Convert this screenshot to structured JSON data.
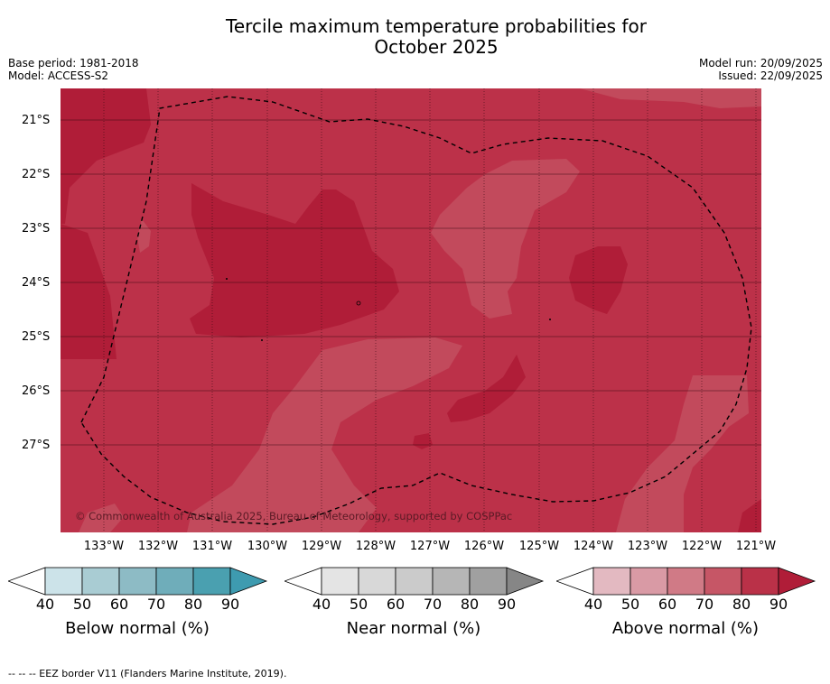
{
  "title_line1": "Tercile maximum temperature probabilities for",
  "title_line2": "October 2025",
  "meta_left": {
    "base_period": "Base period: 1981-2018",
    "model": "Model: ACCESS-S2"
  },
  "meta_right": {
    "model_run": "Model run: 20/09/2025",
    "issued": "Issued: 22/09/2025"
  },
  "copyright": "© Commonwealth of Australia 2025, Bureau of Meteorology, supported by COSPPac",
  "lat_labels": [
    "21°S",
    "22°S",
    "23°S",
    "24°S",
    "25°S",
    "26°S",
    "27°S"
  ],
  "lon_labels": [
    "133°W",
    "132°W",
    "131°W",
    "130°W",
    "129°W",
    "128°W",
    "127°W",
    "126°W",
    "125°W",
    "124°W",
    "123°W",
    "122°W",
    "121°W"
  ],
  "legends": [
    {
      "title": "Below normal (%)",
      "ticks": [
        "40",
        "50",
        "60",
        "70",
        "80",
        "90"
      ],
      "colors": [
        "#cce3e9",
        "#a9ccd3",
        "#8dbbc5",
        "#6fadba",
        "#4aa0b0",
        "#3e9bb0"
      ]
    },
    {
      "title": "Near normal (%)",
      "ticks": [
        "40",
        "50",
        "60",
        "70",
        "80",
        "90"
      ],
      "colors": [
        "#e4e4e4",
        "#d8d8d8",
        "#cbcbcb",
        "#b6b6b6",
        "#a0a0a0",
        "#868686"
      ]
    },
    {
      "title": "Above normal (%)",
      "ticks": [
        "40",
        "50",
        "60",
        "70",
        "80",
        "90"
      ],
      "colors": [
        "#e3b9c1",
        "#d99aa5",
        "#d07a86",
        "#c65666",
        "#ba3148",
        "#b01d38"
      ]
    }
  ],
  "footer": "--  --  -- EEZ border V11 (Flanders Marine Institute, 2019).",
  "colors": {
    "above_80": "#bc3149",
    "above_90": "#b01d38",
    "above_70": "#c24a5c"
  }
}
